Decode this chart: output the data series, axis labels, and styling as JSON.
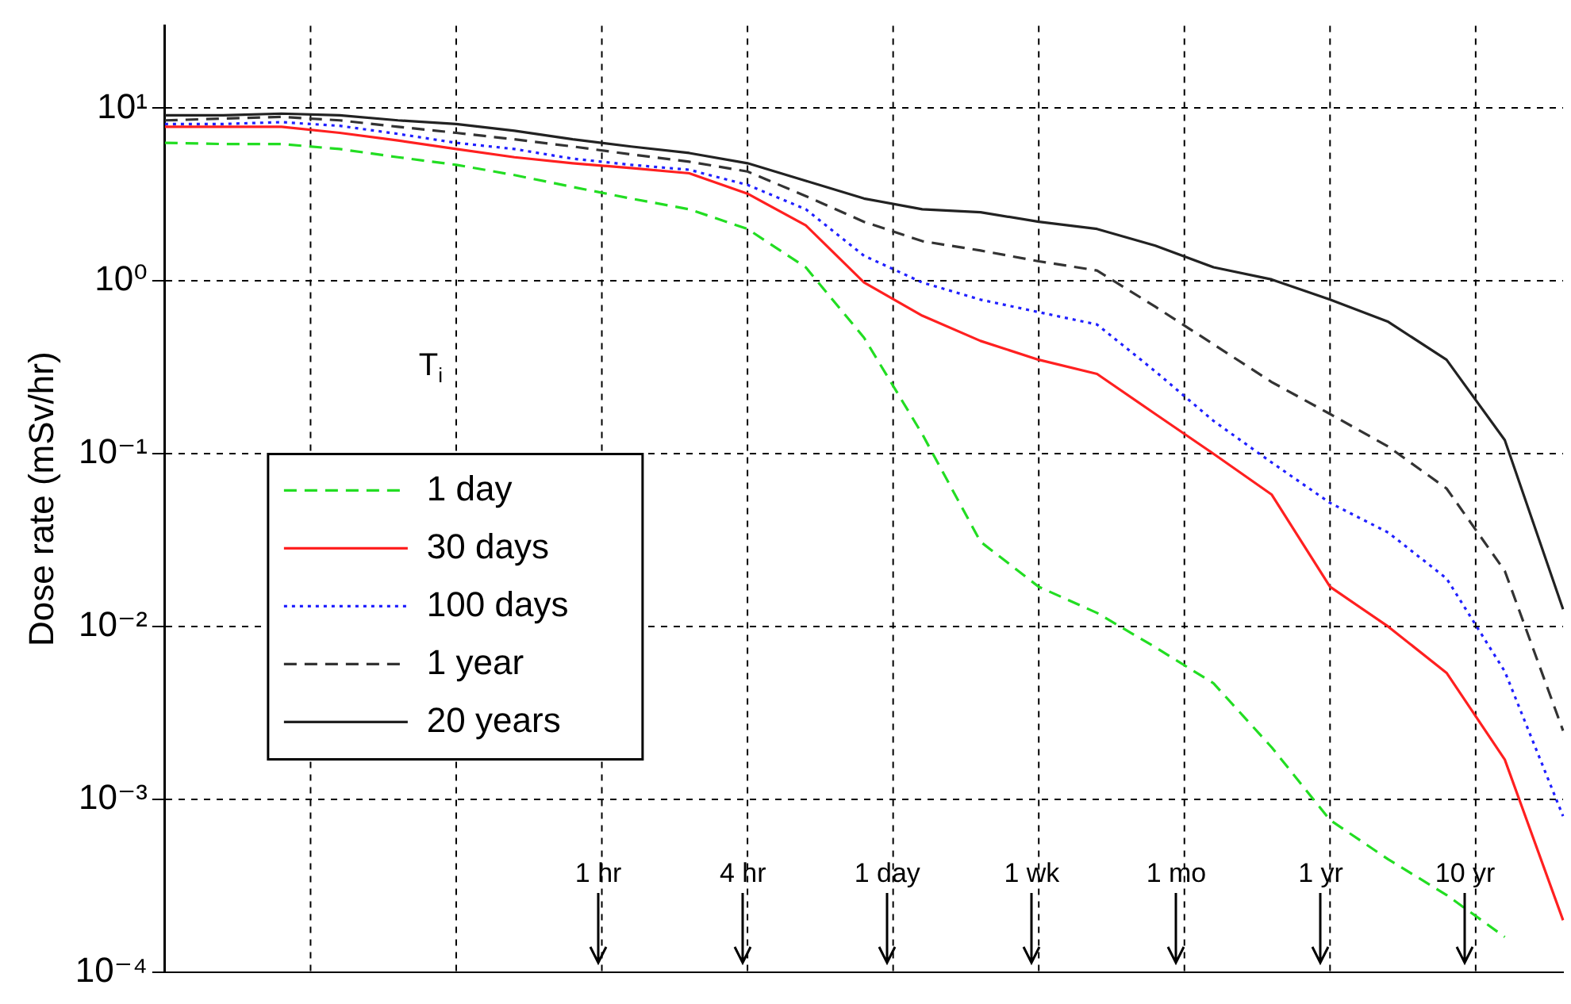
{
  "chart_data": {
    "type": "line",
    "ylabel": "Dose rate (mSv/hr)",
    "legend_title": "T$_{i}$",
    "log": "y",
    "grid": true,
    "legend": "left",
    "tick_labels": "y",
    "marker": "none",
    "categories": [
      null,
      null,
      null,
      null,
      null,
      null,
      null,
      null,
      null,
      null,
      null,
      null,
      null,
      null,
      null,
      null,
      null,
      null,
      null,
      null,
      null,
      null,
      null,
      null,
      null
    ],
    "ylim": [
      0.0001,
      30
    ],
    "yticks": [
      {
        "value": 0.0001,
        "label": "10⁻⁴"
      },
      {
        "value": 0.001,
        "label": "10⁻³"
      },
      {
        "value": 0.01,
        "label": "10⁻²"
      },
      {
        "value": 0.1,
        "label": "10⁻¹"
      },
      {
        "value": 1,
        "label": "10⁰"
      },
      {
        "value": 10,
        "label": "10¹"
      }
    ],
    "series": [
      {
        "name": "1 day",
        "color": "#22dd22",
        "line_style": "dashed",
        "values": [
          6.3,
          6.2,
          6.2,
          5.8,
          5.2,
          4.7,
          4.1,
          3.5,
          3.0,
          2.6,
          2.0,
          1.2,
          0.47,
          0.13,
          0.031,
          0.017,
          0.012,
          0.0076,
          0.0047,
          0.002,
          0.00076,
          0.00045,
          0.00028,
          0.00016,
          null
        ]
      },
      {
        "name": "30 days",
        "color": "#ff2020",
        "line_style": "solid",
        "values": [
          7.8,
          7.8,
          7.8,
          7.2,
          6.5,
          5.8,
          5.2,
          4.8,
          4.5,
          4.2,
          3.2,
          2.1,
          0.98,
          0.63,
          0.45,
          0.35,
          0.29,
          0.17,
          0.1,
          0.058,
          0.017,
          0.01,
          0.0054,
          0.0017,
          0.0002
        ]
      },
      {
        "name": "100 days",
        "color": "#2020ff",
        "line_style": "dotted",
        "values": [
          8.1,
          8.1,
          8.3,
          7.9,
          7.1,
          6.3,
          5.8,
          5.1,
          4.7,
          4.4,
          3.6,
          2.6,
          1.4,
          0.98,
          0.78,
          0.66,
          0.56,
          0.3,
          0.155,
          0.089,
          0.052,
          0.035,
          0.019,
          0.0055,
          0.0008
        ]
      },
      {
        "name": "1 year",
        "color": "#333333",
        "line_style": "dashed",
        "values": [
          8.5,
          8.7,
          8.9,
          8.5,
          7.8,
          7.2,
          6.6,
          6.0,
          5.4,
          4.9,
          4.3,
          3.1,
          2.2,
          1.7,
          1.5,
          1.3,
          1.15,
          0.71,
          0.43,
          0.26,
          0.17,
          0.11,
          0.063,
          0.021,
          0.0025
        ]
      },
      {
        "name": "20 years",
        "color": "#222222",
        "line_style": "solid",
        "values": [
          9.1,
          9.1,
          9.3,
          9.1,
          8.5,
          8.1,
          7.4,
          6.6,
          6.0,
          5.5,
          4.8,
          3.8,
          3.0,
          2.6,
          2.5,
          2.2,
          2.0,
          1.6,
          1.2,
          1.02,
          0.78,
          0.58,
          0.35,
          0.12,
          0.0126
        ]
      }
    ],
    "annotations": [
      "1 hr",
      "4 hr",
      "1 day",
      "1 wk",
      "1 mo",
      "1 yr",
      "10 yr"
    ]
  }
}
